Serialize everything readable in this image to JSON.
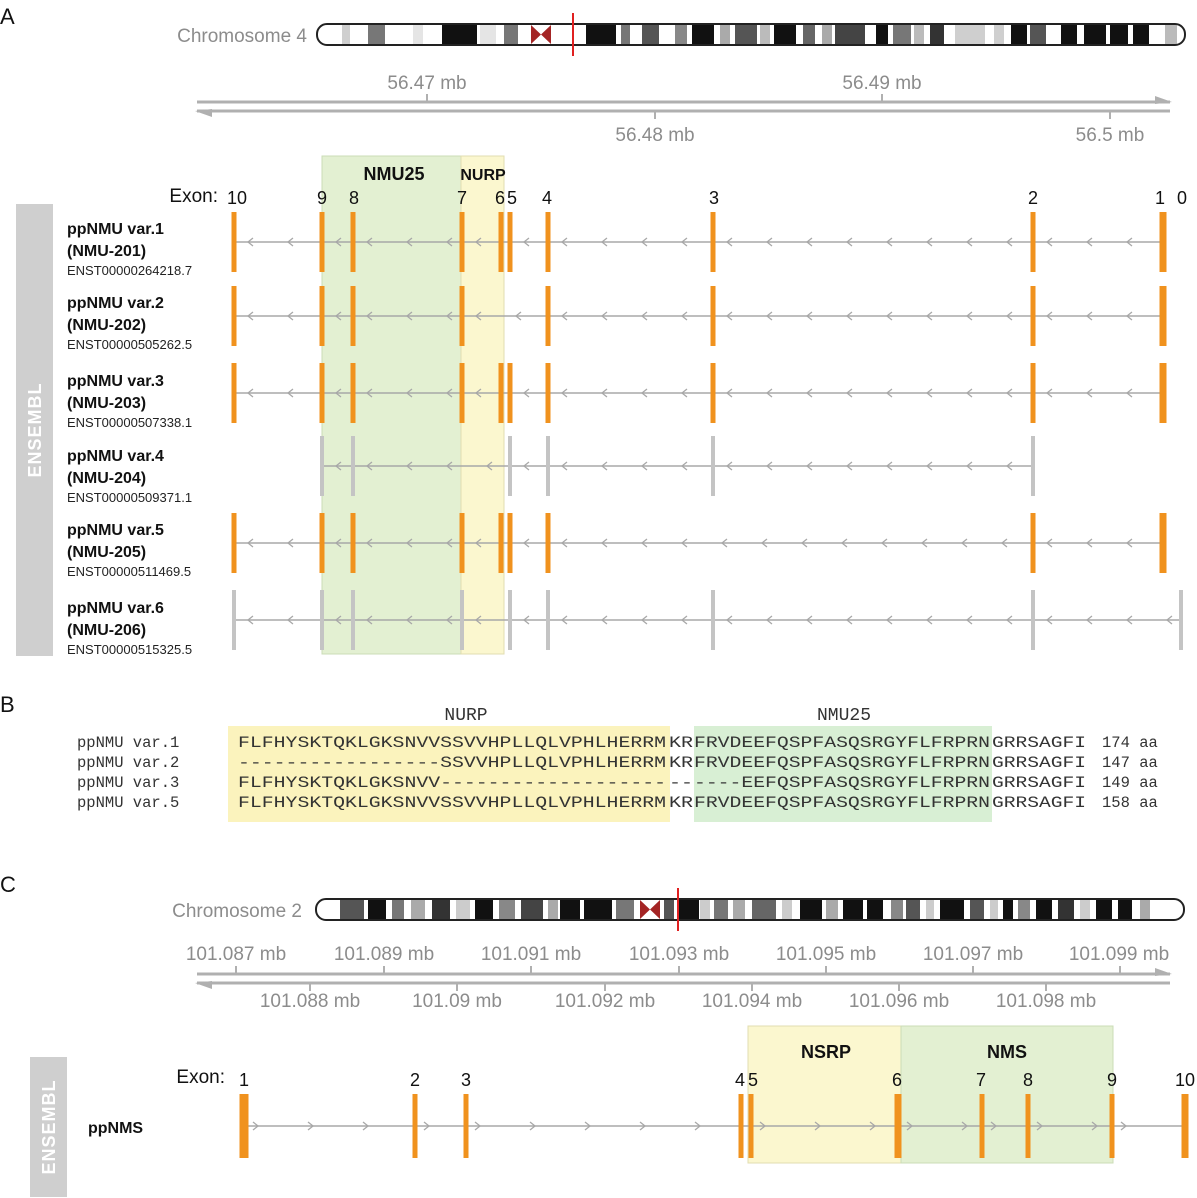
{
  "panel_a": {
    "letter": "A",
    "chromosome_label": "Chromosome 4",
    "scale_top_ticks": [
      "56.47 mb",
      "56.49 mb"
    ],
    "scale_bottom_ticks": [
      "56.48 mb",
      "56.5 mb"
    ],
    "exon_header": "Exon:",
    "exon_labels": [
      "10",
      "9",
      "8",
      "7",
      "6",
      "5",
      "4",
      "3",
      "2",
      "1",
      "0"
    ],
    "region_nmu25": "NMU25",
    "region_nurp": "NURP",
    "side_label": "ENSEMBL",
    "transcripts": [
      {
        "name": "ppNMU var.1",
        "alias": "(NMU-201)",
        "id": "ENST00000264218.7",
        "status": "coding"
      },
      {
        "name": "ppNMU var.2",
        "alias": "(NMU-202)",
        "id": "ENST00000505262.5",
        "status": "coding"
      },
      {
        "name": "ppNMU var.3",
        "alias": "(NMU-203)",
        "id": "ENST00000507338.1",
        "status": "coding"
      },
      {
        "name": "ppNMU var.4",
        "alias": "(NMU-204)",
        "id": "ENST00000509371.1",
        "status": "noncoding"
      },
      {
        "name": "ppNMU var.5",
        "alias": "(NMU-205)",
        "id": "ENST00000511469.5",
        "status": "coding"
      },
      {
        "name": "ppNMU var.6",
        "alias": "(NMU-206)",
        "id": "ENST00000515325.5",
        "status": "noncoding"
      }
    ]
  },
  "panel_b": {
    "letter": "B",
    "header_nurp": "NURP",
    "header_nmu25": "NMU25",
    "rows": [
      {
        "label": "ppNMU var.1",
        "nurp": "FLFHYSKTQKLGKSNVVSSVVHPLLQLVPHLHERRM",
        "kr": "KR",
        "nmu": "FRVDEEFQSPFASQSRGYFLFRPRN",
        "tail": "GRRSAGFI",
        "length": "174 aa"
      },
      {
        "label": "ppNMU var.2",
        "nurp": "-----------------SSVVHPLLQLVPHLHERRM",
        "kr": "KR",
        "nmu": "FRVDEEFQSPFASQSRGYFLFRPRN",
        "tail": "GRRSAGFI",
        "length": "147 aa"
      },
      {
        "label": "ppNMU var.3",
        "nurp": "FLFHYSKTQKLGKSNVV-------------------",
        "kr": "--",
        "nmu": "----EEFQSPFASQSRGYFLFRPRN",
        "tail": "GRRSAGFI",
        "length": "149 aa"
      },
      {
        "label": "ppNMU var.5",
        "nurp": "FLFHYSKTQKLGKSNVVSSVVHPLLQLVPHLHERRM",
        "kr": "KR",
        "nmu": "FRVDEEFQSPFASQSRGYFLFRPRN",
        "tail": "GRRSAGFI",
        "length": "158 aa"
      }
    ]
  },
  "panel_c": {
    "letter": "C",
    "chromosome_label": "Chromosome 2",
    "scale_top_ticks": [
      "101.087 mb",
      "101.089 mb",
      "101.091 mb",
      "101.093 mb",
      "101.095 mb",
      "101.097 mb",
      "101.099 mb"
    ],
    "scale_bottom_ticks": [
      "101.088 mb",
      "101.09 mb",
      "101.092 mb",
      "101.094 mb",
      "101.096 mb",
      "101.098 mb"
    ],
    "exon_header": "Exon:",
    "exon_labels": [
      "1",
      "2",
      "3",
      "4",
      "5",
      "6",
      "7",
      "8",
      "9",
      "10"
    ],
    "region_nsrp": "NSRP",
    "region_nms": "NMS",
    "side_label": "ENSEMBL",
    "transcript_name": "ppNMS"
  },
  "colors": {
    "exon_coding": "#f0921e",
    "exon_noncoding": "#c4c4c4",
    "intron_line": "#a8a8a8",
    "green_region": "#e3f0d2",
    "yellow_region": "#fbf7cf",
    "ensembl_bar": "#cfcfcf",
    "centromere": "#a42525",
    "marker": "#e02020",
    "scale": "#b0b0b0"
  }
}
